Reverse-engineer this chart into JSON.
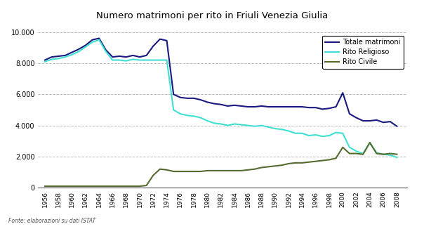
{
  "title": "Numero matrimoni per rito in Friuli Venezia Giulia",
  "source": "Fonte: elaborazioni su dati ISTAT",
  "ylim": [
    0,
    10000
  ],
  "yticks": [
    0,
    2000,
    4000,
    6000,
    8000,
    10000
  ],
  "years": [
    1956,
    1957,
    1958,
    1959,
    1960,
    1961,
    1962,
    1963,
    1964,
    1965,
    1966,
    1967,
    1968,
    1969,
    1970,
    1971,
    1972,
    1973,
    1974,
    1975,
    1976,
    1977,
    1978,
    1979,
    1980,
    1981,
    1982,
    1983,
    1984,
    1985,
    1986,
    1987,
    1988,
    1989,
    1990,
    1991,
    1992,
    1993,
    1994,
    1995,
    1996,
    1997,
    1998,
    1999,
    2000,
    2001,
    2002,
    2003,
    2004,
    2005,
    2006,
    2007,
    2008
  ],
  "rito_religioso": [
    8100,
    8250,
    8300,
    8400,
    8550,
    8750,
    9050,
    9350,
    9500,
    8750,
    8200,
    8200,
    8150,
    8250,
    8200,
    8200,
    8200,
    8200,
    8200,
    5000,
    4750,
    4650,
    4600,
    4500,
    4300,
    4150,
    4100,
    4000,
    4100,
    4050,
    4000,
    3950,
    4000,
    3900,
    3800,
    3750,
    3650,
    3500,
    3500,
    3350,
    3400,
    3300,
    3350,
    3550,
    3500,
    2600,
    2350,
    2200,
    2900,
    2250,
    2150,
    2100,
    1950
  ],
  "rito_civile": [
    100,
    100,
    100,
    100,
    100,
    100,
    100,
    100,
    100,
    100,
    100,
    100,
    100,
    100,
    100,
    150,
    800,
    1200,
    1150,
    1050,
    1050,
    1050,
    1050,
    1050,
    1100,
    1100,
    1100,
    1100,
    1100,
    1100,
    1150,
    1200,
    1300,
    1350,
    1400,
    1450,
    1550,
    1600,
    1600,
    1650,
    1700,
    1750,
    1800,
    1900,
    2600,
    2200,
    2200,
    2150,
    2900,
    2200,
    2150,
    2200,
    2150
  ],
  "totale": [
    8200,
    8400,
    8450,
    8500,
    8700,
    8900,
    9150,
    9500,
    9600,
    8850,
    8400,
    8450,
    8400,
    8500,
    8400,
    8500,
    9100,
    9550,
    9450,
    6000,
    5800,
    5750,
    5750,
    5650,
    5500,
    5400,
    5350,
    5250,
    5300,
    5250,
    5200,
    5200,
    5250,
    5200,
    5200,
    5200,
    5200,
    5200,
    5200,
    5150,
    5150,
    5050,
    5100,
    5200,
    6100,
    4750,
    4500,
    4300,
    4300,
    4350,
    4200,
    4250,
    3950
  ],
  "color_religioso": "#40E0D0",
  "color_civile": "#556B2F",
  "color_totale": "#191980",
  "legend_labels": [
    "Rito Religioso",
    "Rito Civile",
    "Totale matrimoni"
  ],
  "xtick_years": [
    1956,
    1958,
    1960,
    1962,
    1964,
    1966,
    1968,
    1970,
    1972,
    1974,
    1976,
    1978,
    1980,
    1982,
    1984,
    1986,
    1988,
    1990,
    1992,
    1994,
    1996,
    1998,
    2000,
    2002,
    2004,
    2006,
    2008
  ],
  "plot_bg_color": "#f5f5f5",
  "outer_bg_color": "#ffffff",
  "grid_color": "#aaaaaa"
}
